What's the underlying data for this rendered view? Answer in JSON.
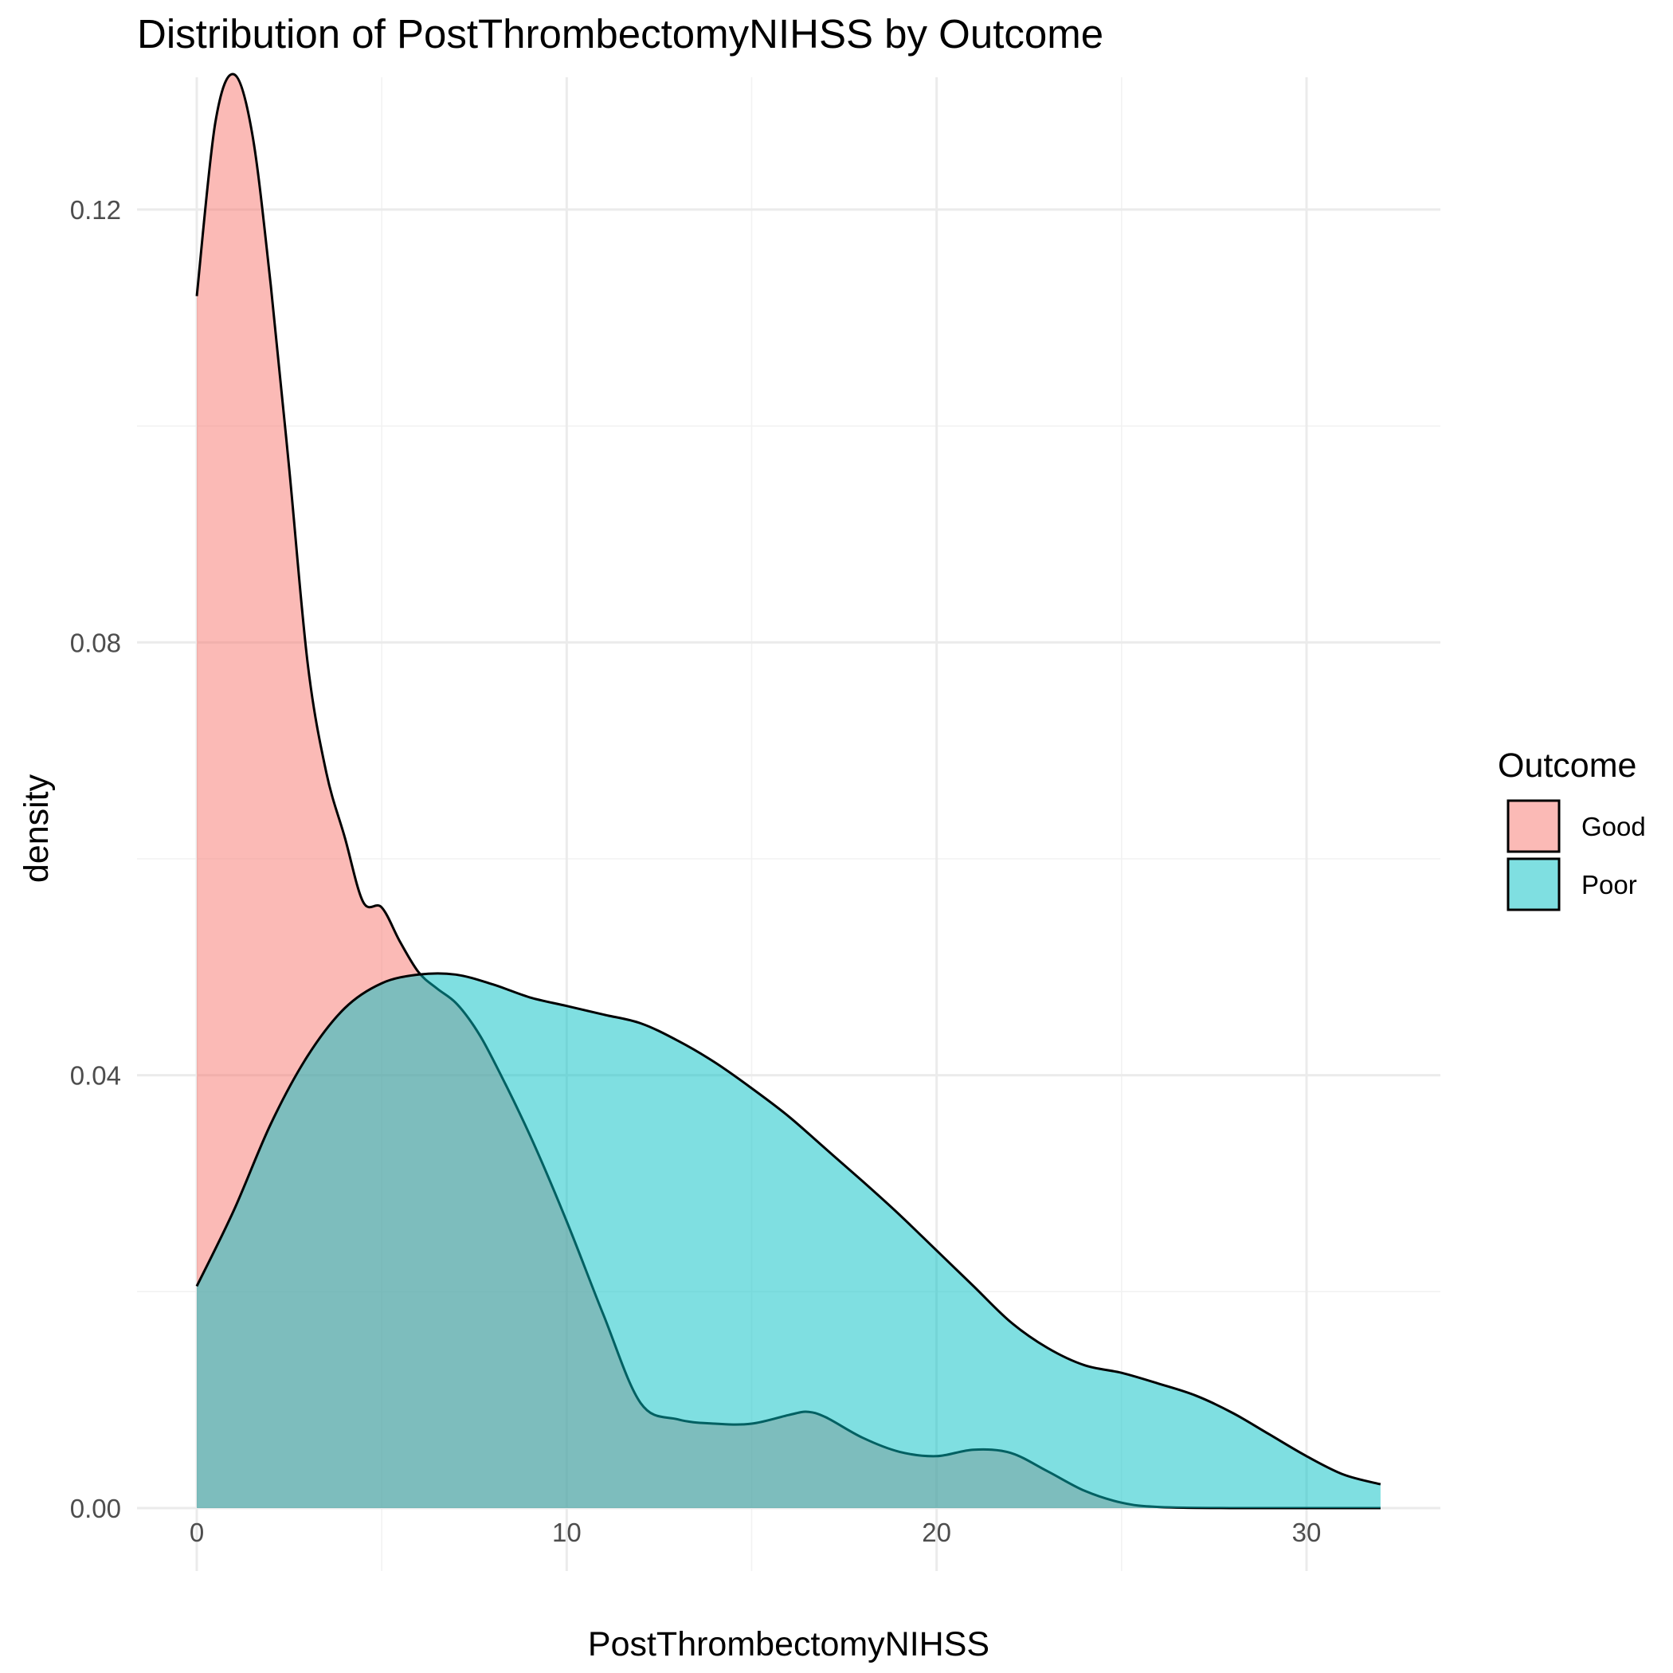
{
  "chart_data": {
    "type": "area",
    "title": "Distribution of PostThrombectomyNIHSS by Outcome",
    "xlabel": "PostThrombectomyNIHSS",
    "ylabel": "density",
    "xlim": [
      0,
      32
    ],
    "ylim": [
      0,
      0.13
    ],
    "x_ticks": [
      0,
      10,
      20,
      30
    ],
    "x_tick_labels": [
      "0",
      "10",
      "20",
      "30"
    ],
    "y_ticks": [
      0,
      0.04,
      0.08,
      0.12
    ],
    "y_tick_labels": [
      "0.00",
      "0.04",
      "0.08",
      "0.12"
    ],
    "grid": true,
    "legend": {
      "title": "Outcome",
      "position": "right"
    },
    "series": [
      {
        "name": "Good",
        "color": "#F8766D",
        "x": [
          0,
          0.5,
          1,
          1.5,
          2,
          2.5,
          3,
          3.5,
          4,
          4.5,
          5,
          5.5,
          6,
          6.5,
          7,
          7.5,
          8,
          9,
          10,
          11,
          12,
          13,
          14,
          15,
          16,
          16.5,
          17,
          18,
          19,
          20,
          21,
          22,
          23,
          24,
          25,
          26,
          28,
          30,
          32
        ],
        "y": [
          0.112,
          0.128,
          0.1325,
          0.127,
          0.113,
          0.096,
          0.078,
          0.068,
          0.062,
          0.056,
          0.0555,
          0.0523,
          0.0495,
          0.048,
          0.0467,
          0.0445,
          0.0415,
          0.0345,
          0.0265,
          0.0178,
          0.0097,
          0.0082,
          0.0078,
          0.0078,
          0.0086,
          0.0089,
          0.0084,
          0.0065,
          0.0052,
          0.0048,
          0.0054,
          0.0051,
          0.0034,
          0.0016,
          0.0005,
          0.0001,
          0.0,
          0.0,
          0.0
        ]
      },
      {
        "name": "Poor",
        "color": "#00BFC4",
        "x": [
          0,
          1,
          2,
          3,
          4,
          5,
          6,
          7,
          8,
          9,
          10,
          11,
          12,
          13,
          14,
          15,
          16,
          17,
          18,
          19,
          20,
          21,
          22,
          23,
          24,
          25,
          26,
          27,
          28,
          29,
          30,
          31,
          32
        ],
        "y": [
          0.0205,
          0.0275,
          0.0355,
          0.0418,
          0.0462,
          0.0485,
          0.0493,
          0.0493,
          0.0484,
          0.0472,
          0.0464,
          0.0456,
          0.0448,
          0.0432,
          0.0412,
          0.0388,
          0.0362,
          0.0332,
          0.0302,
          0.0271,
          0.0238,
          0.0205,
          0.0172,
          0.0148,
          0.0132,
          0.0125,
          0.0115,
          0.0104,
          0.0088,
          0.0068,
          0.0048,
          0.0031,
          0.0022
        ]
      }
    ]
  }
}
